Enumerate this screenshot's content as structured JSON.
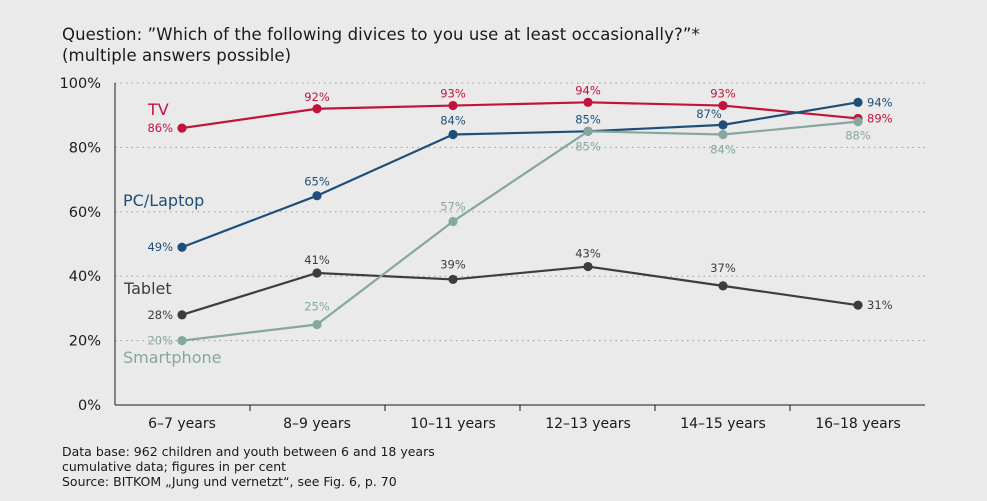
{
  "question": {
    "line1": "Question: ”Which of the following divices to you use at least occasionally?”*",
    "line2": "(multiple answers possible)"
  },
  "notes": {
    "line1": "Data base: 962 children and youth between 6 and 18 years",
    "line2": "cumulative data; figures in per cent",
    "line3": "Source: BITKOM „Jung und vernetzt“, see Fig. 6, p. 70"
  },
  "chart_data": {
    "type": "line",
    "title": "Question: ”Which of the following divices to you use at least occasionally?”*",
    "subtitle": "(multiple answers possible)",
    "xlabel": "",
    "ylabel": "",
    "ylim": [
      0,
      100
    ],
    "y_ticks": [
      "0%",
      "20%",
      "40%",
      "60%",
      "80%",
      "100%"
    ],
    "grid": "horizontal dotted",
    "categories": [
      "6–7 years",
      "8–9 years",
      "10–11 years",
      "12–13 years",
      "14–15 years",
      "16–18 years"
    ],
    "series": [
      {
        "name": "TV",
        "color": "#c0143c",
        "values": [
          86,
          92,
          93,
          94,
          93,
          89
        ],
        "labels": [
          "86%",
          "92%",
          "93%",
          "94%",
          "93%",
          "89%"
        ]
      },
      {
        "name": "PC/Laptop",
        "color": "#1f4e79",
        "values": [
          49,
          65,
          84,
          85,
          87,
          94
        ],
        "labels": [
          "49%",
          "65%",
          "84%",
          "85%",
          "87%",
          "94%"
        ]
      },
      {
        "name": "Tablet",
        "color": "#3d3d3d",
        "values": [
          28,
          41,
          39,
          43,
          37,
          31
        ],
        "labels": [
          "28%",
          "41%",
          "39%",
          "43%",
          "37%",
          "31%"
        ]
      },
      {
        "name": "Smartphone",
        "color": "#86a79f",
        "values": [
          20,
          25,
          57,
          85,
          84,
          88
        ],
        "labels": [
          "20%",
          "25%",
          "57%",
          "85%",
          "84%",
          "88%"
        ]
      }
    ]
  }
}
